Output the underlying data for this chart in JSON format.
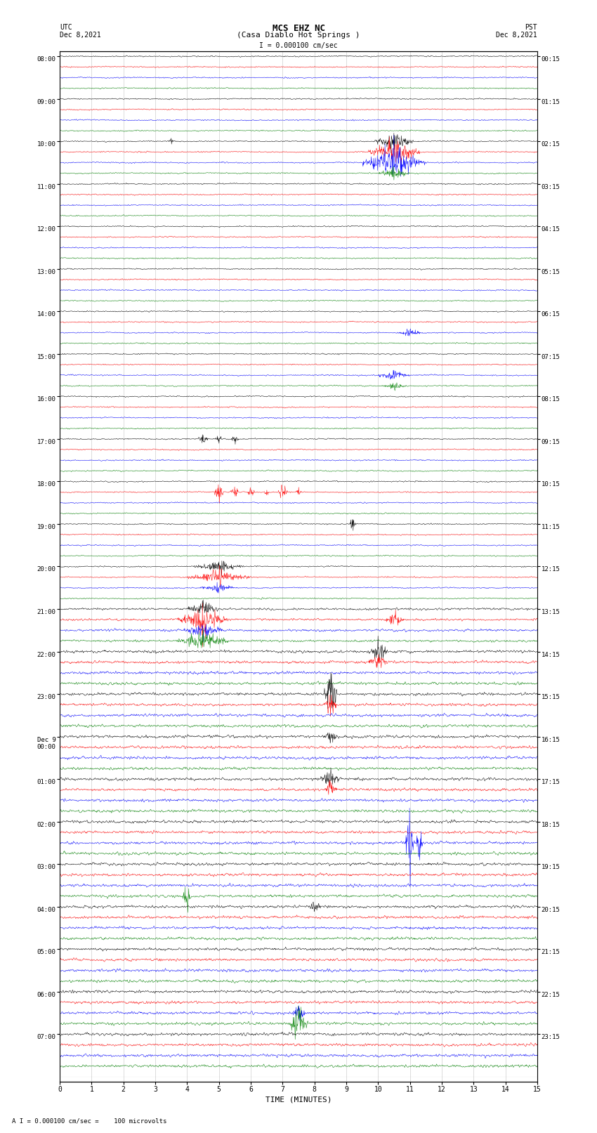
{
  "title_line1": "MCS EHZ NC",
  "title_line2": "(Casa Diablo Hot Springs )",
  "scale_text": "I = 0.000100 cm/sec",
  "bottom_text": "A I = 0.000100 cm/sec =    100 microvolts",
  "utc_label": "UTC",
  "utc_date": "Dec 8,2021",
  "pst_label": "PST",
  "pst_date": "Dec 8,2021",
  "xlabel": "TIME (MINUTES)",
  "left_labels": [
    "08:00",
    "09:00",
    "10:00",
    "11:00",
    "12:00",
    "13:00",
    "14:00",
    "15:00",
    "16:00",
    "17:00",
    "18:00",
    "19:00",
    "20:00",
    "21:00",
    "22:00",
    "23:00",
    "Dec 9\n00:00",
    "01:00",
    "02:00",
    "03:00",
    "04:00",
    "05:00",
    "06:00",
    "07:00"
  ],
  "right_labels": [
    "00:15",
    "01:15",
    "02:15",
    "03:15",
    "04:15",
    "05:15",
    "06:15",
    "07:15",
    "08:15",
    "09:15",
    "10:15",
    "11:15",
    "12:15",
    "13:15",
    "14:15",
    "15:15",
    "16:15",
    "17:15",
    "18:15",
    "19:15",
    "20:15",
    "21:15",
    "22:15",
    "23:15"
  ],
  "colors": [
    "black",
    "red",
    "blue",
    "green"
  ],
  "n_groups": 24,
  "traces_per_group": 4,
  "x_min": 0,
  "x_max": 15,
  "bg_color": "white",
  "grid_color": "#999999",
  "noise_seed": 42
}
